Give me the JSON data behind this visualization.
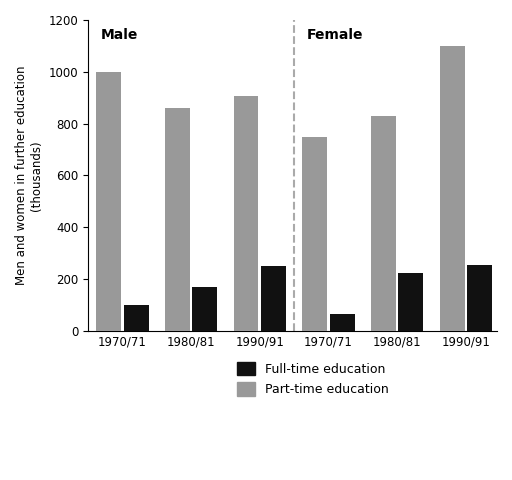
{
  "ylabel": "Men and women in further education\n(thousands)",
  "ylim": [
    0,
    1200
  ],
  "yticks": [
    0,
    200,
    400,
    600,
    800,
    1000,
    1200
  ],
  "categories": [
    "1970/71",
    "1980/81",
    "1990/91"
  ],
  "male_fulltime": [
    100,
    170,
    250
  ],
  "male_parttime": [
    1000,
    860,
    905
  ],
  "female_fulltime": [
    65,
    225,
    255
  ],
  "female_parttime": [
    750,
    830,
    1100
  ],
  "fulltime_color": "#111111",
  "parttime_color": "#999999",
  "bar_width": 0.4,
  "male_label": "Male",
  "female_label": "Female",
  "legend_fulltime": "Full-time education",
  "legend_parttime": "Part-time education",
  "background_color": "#ffffff"
}
